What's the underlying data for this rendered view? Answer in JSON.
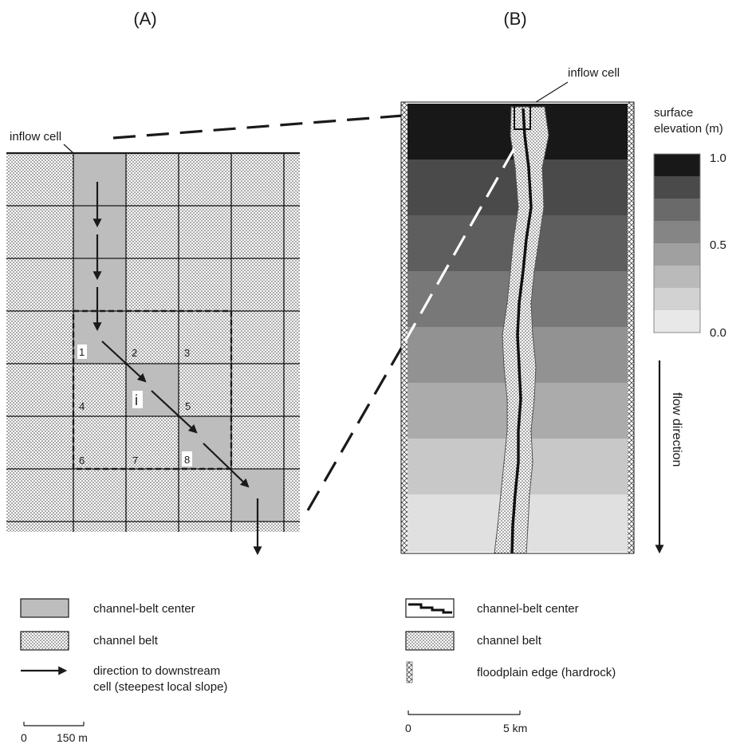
{
  "panel_a": {
    "label": "(A)",
    "inflow_label": "inflow cell",
    "cell_numbers": [
      "1",
      "2",
      "3",
      "4",
      "5",
      "6",
      "7",
      "8"
    ],
    "center_cell_label": "i"
  },
  "panel_b": {
    "label": "(B)",
    "inflow_label": "inflow cell",
    "colorbar_title_line1": "surface",
    "colorbar_title_line2": "elevation (m)",
    "colorbar_ticks": [
      "1.0",
      "0.5",
      "0.0"
    ],
    "colorbar_colors": [
      "#181818",
      "#4a4a4a",
      "#6a6a6a",
      "#858585",
      "#a0a0a0",
      "#bababa",
      "#d2d2d2",
      "#e8e8e8"
    ],
    "flow_label": "flow direction"
  },
  "legend_a": {
    "center_label": "channel-belt center",
    "belt_label": "channel belt",
    "arrow_line1": "direction to downstream",
    "arrow_line2": "cell (steepest local slope)"
  },
  "legend_b": {
    "center_label": "channel-belt center",
    "belt_label": "channel belt",
    "edge_label": "floodplain edge (hardrock)"
  },
  "scale_a": {
    "zero": "0",
    "end": "150 m"
  },
  "scale_b": {
    "zero": "0",
    "end": "5 km"
  }
}
